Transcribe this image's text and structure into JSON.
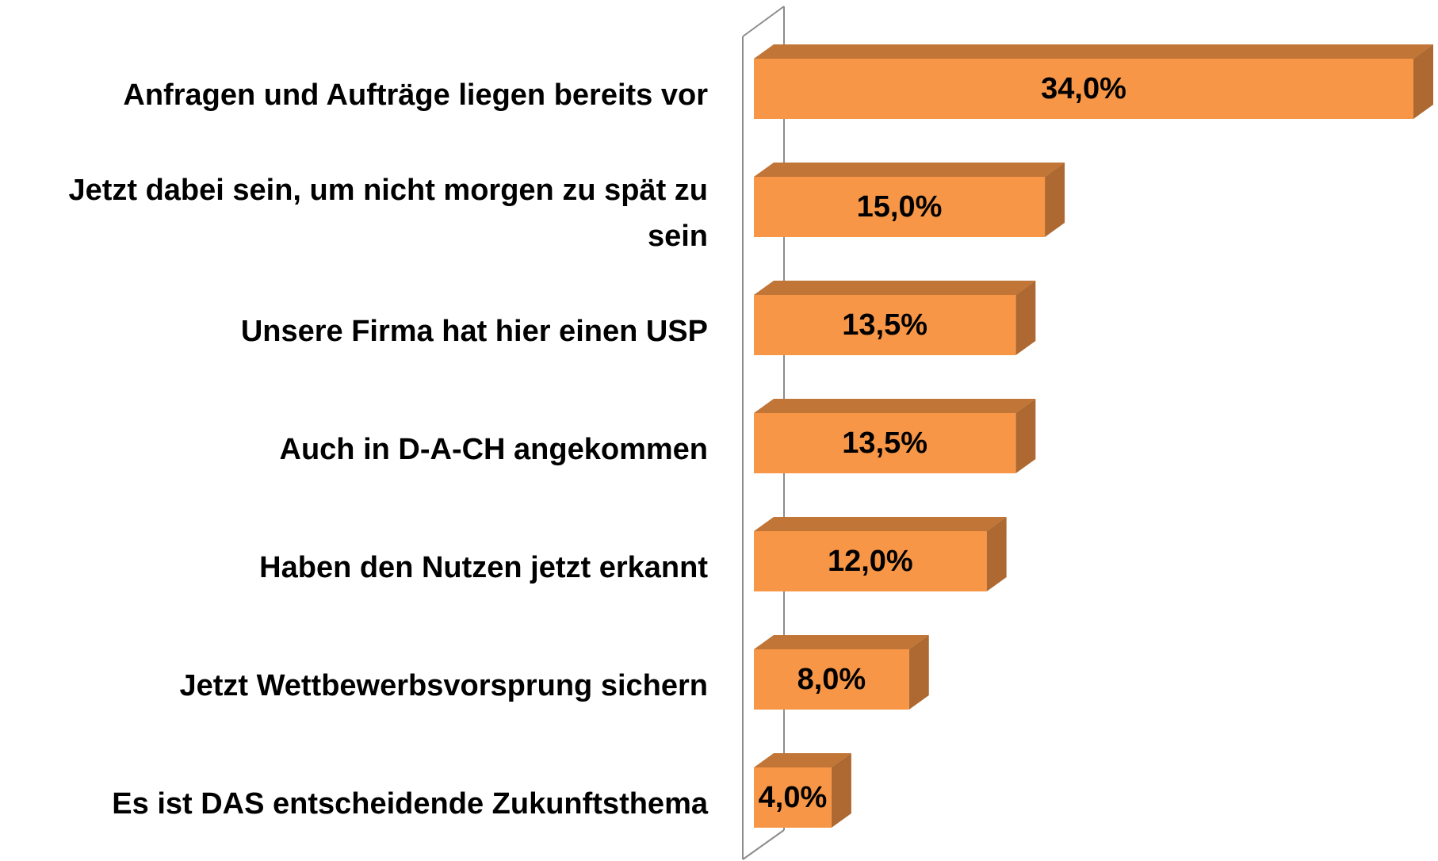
{
  "chart_data": {
    "type": "bar",
    "orientation": "horizontal",
    "categories": [
      "Anfragen und Aufträge liegen bereits vor",
      "Jetzt dabei sein, um nicht morgen zu spät zu sein",
      "Unsere Firma hat hier einen USP",
      "Auch in D-A-CH angekommen",
      "Haben den Nutzen jetzt erkannt",
      "Jetzt Wettbewerbsvorsprung sichern",
      "Es ist DAS entscheidende Zukunftsthema"
    ],
    "values": [
      34,
      15,
      13.5,
      13.5,
      12,
      8,
      4
    ],
    "value_labels": [
      "34,0%",
      "15,0%",
      "13,5%",
      "13,5%",
      "12,0%",
      "8,0%",
      "4,0%"
    ],
    "color": "#f79646",
    "xlim": [
      0,
      34
    ]
  }
}
